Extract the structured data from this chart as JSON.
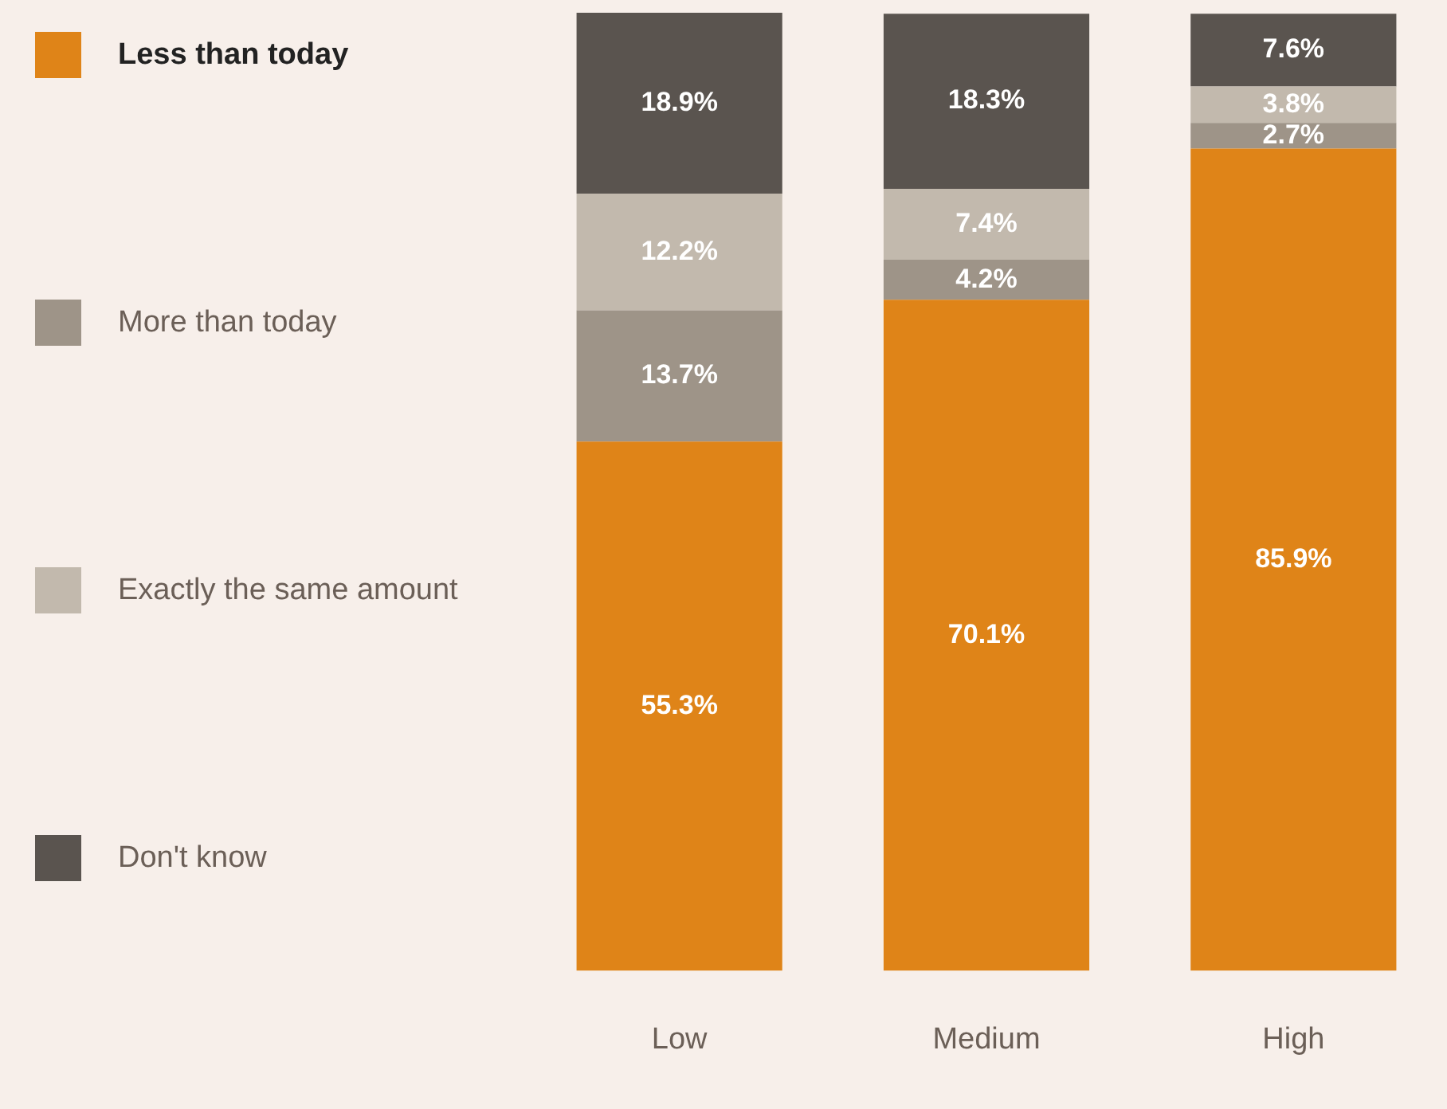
{
  "chart_data": {
    "type": "bar",
    "stacked": true,
    "categories": [
      "Low",
      "Medium",
      "High"
    ],
    "series": [
      {
        "name": "Less than today",
        "color": "#df8418",
        "values": [
          55.3,
          70.1,
          85.9
        ],
        "value_labels": [
          "55.3%",
          "70.1%",
          "85.9%"
        ]
      },
      {
        "name": "More than today",
        "color": "#9e9488",
        "values": [
          13.7,
          4.2,
          2.7
        ],
        "value_labels": [
          "13.7%",
          "4.2%",
          "2.7%"
        ]
      },
      {
        "name": "Exactly the same amount",
        "color": "#c2b9ad",
        "values": [
          12.2,
          7.4,
          3.8
        ],
        "value_labels": [
          "12.2%",
          "7.4%",
          "3.8%"
        ]
      },
      {
        "name": "Don't know",
        "color": "#5a544f",
        "values": [
          18.9,
          18.3,
          7.6
        ],
        "value_labels": [
          "18.9%",
          "18.3%",
          "7.6%"
        ]
      }
    ],
    "tick_labels": "x",
    "grid": false,
    "legend": "left"
  }
}
